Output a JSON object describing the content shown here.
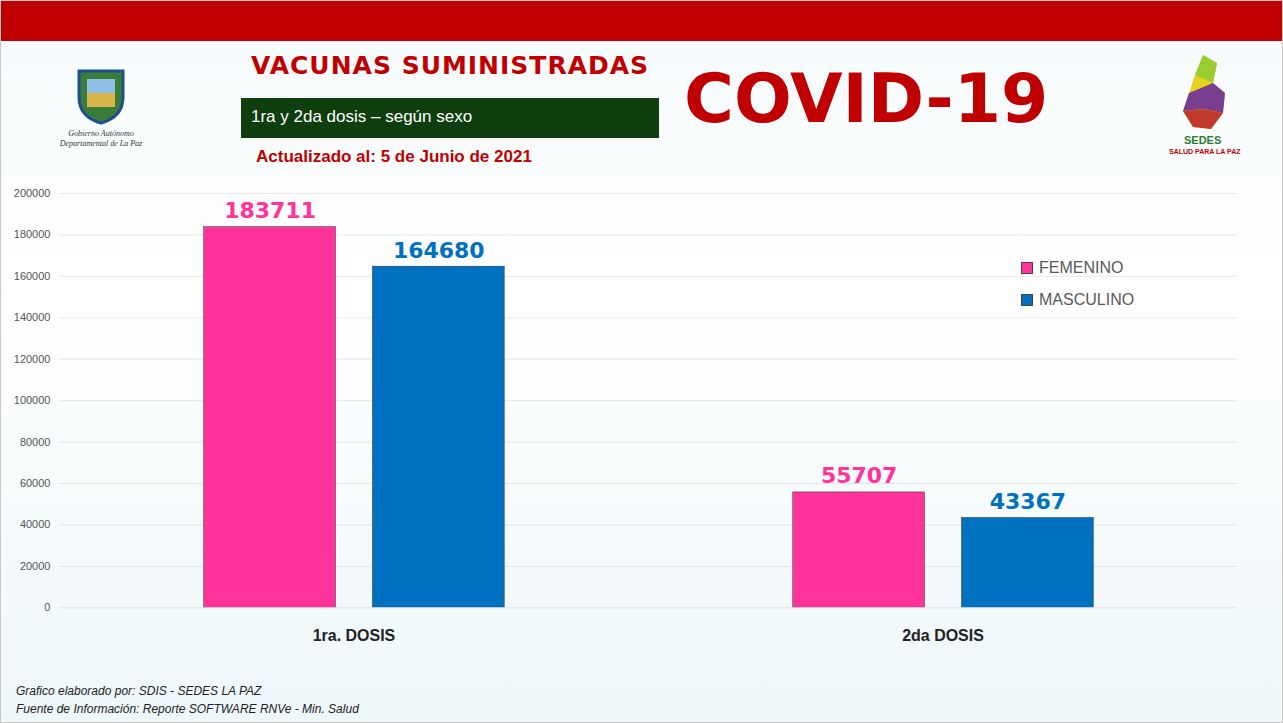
{
  "chart_data": {
    "type": "bar",
    "title": "VACUNAS SUMINISTRADAS",
    "subtitle": "1ra y 2da dosis – según sexo",
    "annotations": [
      "COVID-19",
      "Actualizado al: 5 de Junio de 2021",
      "Grafico elaborado por: SDIS - SEDES LA PAZ",
      "Fuente de Información: Reporte SOFTWARE RNVe - Min. Salud",
      "Gobierno Autónomo Departamental de La Paz",
      "SEDES",
      "SALUD PARA LA PAZ"
    ],
    "categories": [
      "1ra. DOSIS",
      "2da DOSIS"
    ],
    "series": [
      {
        "name": "FEMENINO",
        "color": "#ff3399",
        "values": [
          183711,
          55707
        ]
      },
      {
        "name": "MASCULINO",
        "color": "#0070c0",
        "values": [
          164680,
          43367
        ]
      }
    ],
    "ylim": [
      0,
      200000
    ],
    "yticks": [
      0,
      20000,
      40000,
      60000,
      80000,
      100000,
      120000,
      140000,
      160000,
      180000,
      200000
    ],
    "grid": true,
    "legend": "right",
    "data_labels": true
  }
}
